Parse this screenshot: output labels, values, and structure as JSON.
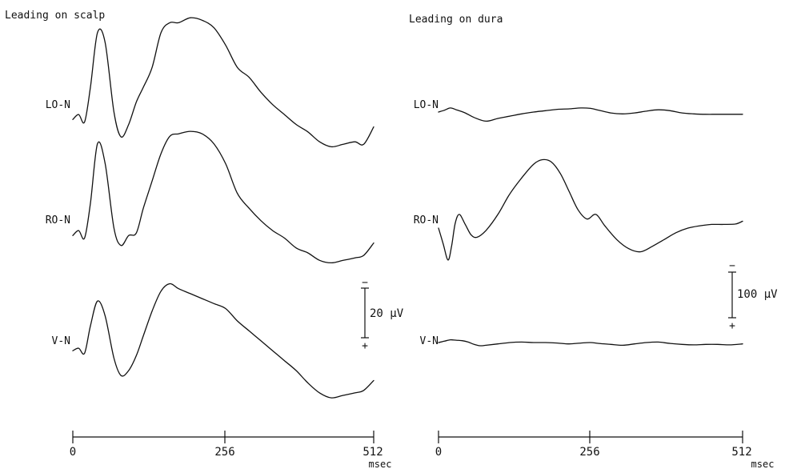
{
  "chart_data": [
    {
      "type": "line",
      "title": "Leading on scalp",
      "x_unit": "msec",
      "x_ticks": [
        "0",
        "256",
        "512"
      ],
      "xlim": [
        0,
        512
      ],
      "scale_bar": {
        "label": "20 μV",
        "minus": "−",
        "plus": "+"
      },
      "series": [
        {
          "name": "LO-N",
          "x": [
            0,
            10,
            20,
            30,
            42,
            55,
            70,
            82,
            95,
            108,
            120,
            135,
            150,
            165,
            180,
            200,
            220,
            240,
            260,
            280,
            300,
            320,
            340,
            360,
            380,
            400,
            420,
            440,
            460,
            480,
            495,
            512
          ],
          "y": [
            -3,
            -1,
            -4,
            10,
            32,
            28,
            0,
            -10,
            -5,
            4,
            10,
            18,
            32,
            36,
            36,
            38,
            37,
            34,
            27,
            18,
            14,
            8,
            3,
            -1,
            -5,
            -8,
            -12,
            -14,
            -13,
            -12,
            -13,
            -6
          ]
        },
        {
          "name": "RO-N",
          "x": [
            0,
            10,
            20,
            30,
            42,
            55,
            70,
            82,
            95,
            108,
            120,
            135,
            150,
            165,
            180,
            200,
            220,
            240,
            260,
            280,
            300,
            320,
            340,
            360,
            380,
            400,
            420,
            440,
            460,
            480,
            495,
            512
          ],
          "y": [
            -3,
            -1,
            -4,
            10,
            34,
            26,
            0,
            -7,
            -3,
            -2,
            8,
            19,
            30,
            37,
            38,
            39,
            38,
            34,
            26,
            14,
            8,
            3,
            -1,
            -4,
            -8,
            -10,
            -13,
            -14,
            -13,
            -12,
            -11,
            -6
          ]
        },
        {
          "name": "V-N",
          "x": [
            0,
            10,
            20,
            30,
            42,
            55,
            70,
            82,
            95,
            108,
            120,
            135,
            150,
            165,
            180,
            200,
            220,
            240,
            260,
            280,
            300,
            320,
            340,
            360,
            380,
            400,
            420,
            440,
            460,
            480,
            495,
            512
          ],
          "y": [
            -2,
            -1,
            -3,
            8,
            18,
            12,
            -5,
            -12,
            -10,
            -4,
            4,
            14,
            22,
            25,
            23,
            21,
            19,
            17,
            15,
            10,
            6,
            2,
            -2,
            -6,
            -10,
            -15,
            -19,
            -21,
            -20,
            -19,
            -18,
            -14
          ]
        }
      ]
    },
    {
      "type": "line",
      "title": "Leading on dura",
      "x_unit": "msec",
      "x_ticks": [
        "0",
        "256",
        "512"
      ],
      "xlim": [
        0,
        512
      ],
      "scale_bar": {
        "label": "100 μV",
        "minus": "−",
        "plus": "+"
      },
      "series": [
        {
          "name": "LO-N",
          "x": [
            0,
            10,
            20,
            30,
            45,
            60,
            80,
            100,
            120,
            140,
            160,
            180,
            200,
            220,
            240,
            256,
            270,
            290,
            310,
            330,
            350,
            370,
            390,
            410,
            430,
            450,
            470,
            490,
            512
          ],
          "y": [
            0,
            4,
            9,
            5,
            -2,
            -12,
            -20,
            -14,
            -9,
            -4,
            0,
            3,
            6,
            7,
            9,
            8,
            4,
            -2,
            -4,
            -2,
            2,
            5,
            3,
            -2,
            -4,
            -5,
            -5,
            -5,
            -5
          ]
        },
        {
          "name": "RO-N",
          "x": [
            0,
            8,
            16,
            22,
            28,
            35,
            45,
            55,
            65,
            80,
            100,
            120,
            140,
            160,
            175,
            190,
            205,
            220,
            235,
            250,
            265,
            280,
            300,
            320,
            340,
            360,
            380,
            400,
            420,
            440,
            460,
            480,
            500,
            512
          ],
          "y": [
            0,
            -35,
            -70,
            -40,
            10,
            30,
            8,
            -15,
            -20,
            -5,
            30,
            75,
            110,
            140,
            150,
            145,
            120,
            80,
            40,
            20,
            30,
            5,
            -25,
            -45,
            -52,
            -40,
            -25,
            -10,
            0,
            5,
            8,
            8,
            9,
            15
          ]
        },
        {
          "name": "V-N",
          "x": [
            0,
            10,
            20,
            30,
            40,
            50,
            60,
            70,
            80,
            100,
            120,
            140,
            160,
            180,
            200,
            220,
            240,
            256,
            270,
            290,
            310,
            330,
            350,
            370,
            390,
            410,
            430,
            450,
            470,
            490,
            512
          ],
          "y": [
            0,
            3,
            6,
            5,
            4,
            1,
            -4,
            -7,
            -6,
            -3,
            0,
            1,
            0,
            0,
            -1,
            -3,
            -1,
            0,
            -2,
            -4,
            -6,
            -3,
            0,
            1,
            -2,
            -4,
            -5,
            -4,
            -4,
            -5,
            -3
          ]
        }
      ]
    }
  ]
}
